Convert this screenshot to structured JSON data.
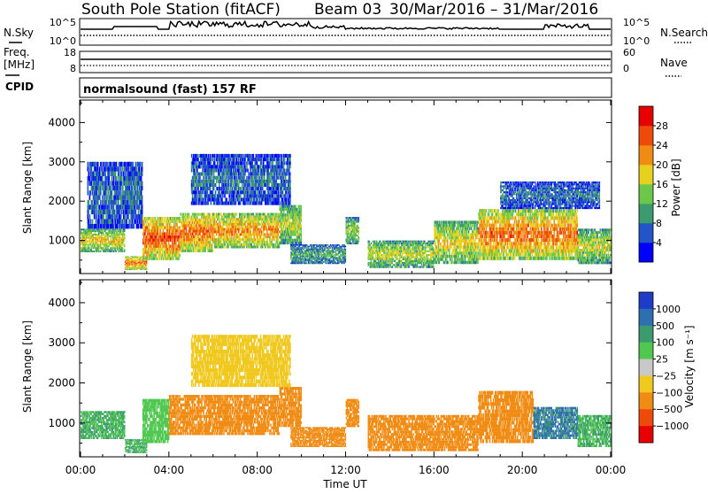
{
  "header": {
    "title_station": "South Pole Station (fitACF)",
    "title_beam": "Beam 03",
    "title_dates": "30/Mar/2016 – 31/Mar/2016"
  },
  "nsky": {
    "label": "N.Sky",
    "left_top": "10^5",
    "left_bottom": "10^0",
    "right_top": "10^5",
    "right_bottom": "10^0",
    "right_label": "N.Search"
  },
  "freq": {
    "label_line1": "Freq.",
    "label_line2": "[MHz]",
    "left_top": "18",
    "left_bottom": "8",
    "right_top": "60",
    "right_bottom": "0",
    "right_label": "Nave"
  },
  "cpid": {
    "label": "CPID",
    "mode": "normalsound (fast) 157 RF"
  },
  "power_panel": {
    "ylabel": "Slant Range [km]",
    "yticks": [
      "1000",
      "2000",
      "3000",
      "4000"
    ],
    "colorbar_label": "Power [dB]",
    "colorbar_ticks": [
      "4",
      "8",
      "12",
      "16",
      "20",
      "24",
      "28"
    ],
    "colors": [
      "#0000ff",
      "#2255c8",
      "#3c9b6e",
      "#6cc84a",
      "#e6d21e",
      "#f08c14",
      "#ee4b0a",
      "#e60000"
    ]
  },
  "velocity_panel": {
    "ylabel": "Slant Range [km]",
    "yticks": [
      "1000",
      "2000",
      "3000",
      "4000"
    ],
    "colorbar_label": "Velocity [m s⁻¹]",
    "colorbar_ticks": [
      "1000",
      "500",
      "100",
      "25",
      "−25",
      "−100",
      "−500",
      "−1000"
    ],
    "colors": [
      "#1e3cc8",
      "#2f6fb0",
      "#3c9b6e",
      "#50c850",
      "#c8c8c8",
      "#f0c81e",
      "#f08c14",
      "#ee4b0a",
      "#e60000"
    ]
  },
  "xaxis": {
    "label": "Time UT",
    "ticks": [
      "00:00",
      "04:00",
      "08:00",
      "12:00",
      "16:00",
      "20:00",
      "00:00"
    ]
  },
  "chart_data": [
    {
      "type": "heatmap",
      "quantity": "Power",
      "unit": "dB",
      "x_range_hours": [
        0,
        24
      ],
      "y_range_km": [
        180,
        4550
      ],
      "color_range": [
        0,
        32
      ],
      "echo_regions": [
        {
          "t_start": 0.0,
          "t_end": 2.0,
          "range_min": 700,
          "range_max": 1300,
          "power": 20
        },
        {
          "t_start": 0.3,
          "t_end": 2.8,
          "range_min": 1300,
          "range_max": 3000,
          "power": 8
        },
        {
          "t_start": 2.0,
          "t_end": 3.0,
          "range_min": 250,
          "range_max": 600,
          "power": 26
        },
        {
          "t_start": 2.8,
          "t_end": 4.5,
          "range_min": 500,
          "range_max": 1600,
          "power": 28
        },
        {
          "t_start": 4.5,
          "t_end": 6.0,
          "range_min": 700,
          "range_max": 1700,
          "power": 26
        },
        {
          "t_start": 6.0,
          "t_end": 9.0,
          "range_min": 800,
          "range_max": 1700,
          "power": 24
        },
        {
          "t_start": 9.0,
          "t_end": 10.0,
          "range_min": 900,
          "range_max": 1900,
          "power": 18
        },
        {
          "t_start": 5.0,
          "t_end": 9.5,
          "range_min": 1900,
          "range_max": 3200,
          "power": 8
        },
        {
          "t_start": 9.5,
          "t_end": 12.0,
          "range_min": 400,
          "range_max": 900,
          "power": 12
        },
        {
          "t_start": 12.0,
          "t_end": 12.6,
          "range_min": 900,
          "range_max": 1600,
          "power": 16
        },
        {
          "t_start": 13.0,
          "t_end": 16.0,
          "range_min": 300,
          "range_max": 1000,
          "power": 18
        },
        {
          "t_start": 16.0,
          "t_end": 18.0,
          "range_min": 400,
          "range_max": 1500,
          "power": 20
        },
        {
          "t_start": 18.0,
          "t_end": 22.5,
          "range_min": 500,
          "range_max": 1800,
          "power": 26
        },
        {
          "t_start": 22.5,
          "t_end": 24.0,
          "range_min": 400,
          "range_max": 1300,
          "power": 18
        },
        {
          "t_start": 19.0,
          "t_end": 23.5,
          "range_min": 1800,
          "range_max": 2500,
          "power": 8
        }
      ]
    },
    {
      "type": "heatmap",
      "quantity": "Velocity",
      "unit": "m s⁻¹",
      "x_range_hours": [
        0,
        24
      ],
      "y_range_km": [
        180,
        4550
      ],
      "color_levels": [
        1000,
        500,
        100,
        25,
        -25,
        -100,
        -500,
        -1000
      ],
      "echo_regions": [
        {
          "t_start": 0.0,
          "t_end": 2.0,
          "range_min": 600,
          "range_max": 1300,
          "velocity": 100
        },
        {
          "t_start": 2.0,
          "t_end": 3.0,
          "range_min": 250,
          "range_max": 600,
          "velocity": 100
        },
        {
          "t_start": 2.8,
          "t_end": 4.0,
          "range_min": 500,
          "range_max": 1600,
          "velocity": 50
        },
        {
          "t_start": 4.0,
          "t_end": 9.0,
          "range_min": 700,
          "range_max": 1700,
          "velocity": -300
        },
        {
          "t_start": 9.0,
          "t_end": 10.0,
          "range_min": 900,
          "range_max": 1900,
          "velocity": -200
        },
        {
          "t_start": 5.0,
          "t_end": 9.5,
          "range_min": 1900,
          "range_max": 3200,
          "velocity": -50
        },
        {
          "t_start": 9.5,
          "t_end": 12.0,
          "range_min": 400,
          "range_max": 900,
          "velocity": -300
        },
        {
          "t_start": 12.0,
          "t_end": 12.6,
          "range_min": 900,
          "range_max": 1600,
          "velocity": -200
        },
        {
          "t_start": 13.0,
          "t_end": 18.0,
          "range_min": 300,
          "range_max": 1200,
          "velocity": -300
        },
        {
          "t_start": 18.0,
          "t_end": 20.5,
          "range_min": 500,
          "range_max": 1800,
          "velocity": -200
        },
        {
          "t_start": 20.5,
          "t_end": 22.5,
          "range_min": 600,
          "range_max": 1400,
          "velocity": 600
        },
        {
          "t_start": 22.5,
          "t_end": 24.0,
          "range_min": 400,
          "range_max": 1200,
          "velocity": 100
        }
      ]
    }
  ]
}
